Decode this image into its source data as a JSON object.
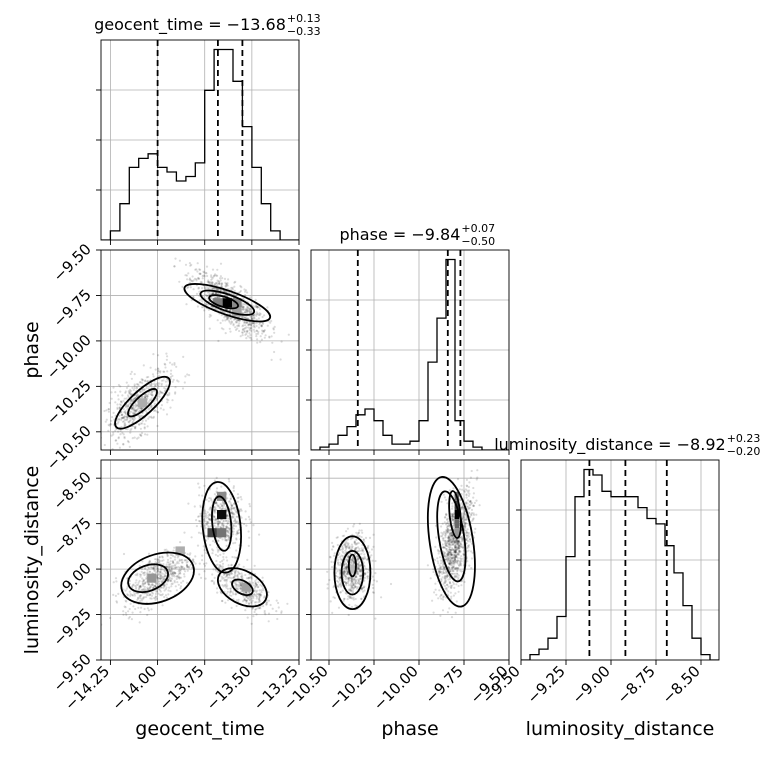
{
  "chart_data": {
    "type": "corner",
    "parameters": [
      "geocent_time",
      "phase",
      "luminosity_distance"
    ],
    "axis_labels": [
      "geocent_time",
      "phase",
      "luminosity_distance"
    ],
    "ranges": [
      [
        -14.3,
        -13.25
      ],
      [
        -10.6,
        -9.5
      ],
      [
        -9.5,
        -8.4
      ]
    ],
    "ticks": [
      [
        -14.25,
        -14.0,
        -13.75,
        -13.5,
        -13.25
      ],
      [
        -10.5,
        -10.25,
        -10.0,
        -9.75,
        -9.5
      ],
      [
        -9.5,
        -9.25,
        -9.0,
        -8.75,
        -8.5
      ]
    ],
    "tick_labels": [
      [
        "−14.25",
        "−14.00",
        "−13.75",
        "−13.50",
        "−13.25"
      ],
      [
        "−10.50",
        "−10.25",
        "−10.00",
        "−9.75",
        "−9.50"
      ],
      [
        "−9.50",
        "−9.25",
        "−9.00",
        "−8.75",
        "−8.50"
      ]
    ],
    "titles": [
      {
        "text": "geocent_time = −13.68",
        "plus": "+0.13",
        "minus": "−0.33"
      },
      {
        "text": "phase = −9.84",
        "plus": "+0.07",
        "minus": "−0.50"
      },
      {
        "text": "luminosity_distance = −8.92",
        "plus": "+0.23",
        "minus": "−0.20"
      }
    ],
    "quantiles": [
      [
        -14.0,
        -13.68,
        -13.55
      ],
      [
        -10.34,
        -9.84,
        -9.77
      ],
      [
        -9.12,
        -8.92,
        -8.69
      ]
    ],
    "histograms": [
      {
        "x0": -14.3,
        "width": 0.05,
        "counts": [
          0,
          2,
          8,
          16,
          18,
          19,
          16,
          15,
          13,
          14,
          17,
          33,
          42,
          42,
          35,
          25,
          16,
          8,
          2,
          0,
          0
        ]
      },
      {
        "x0": -10.6,
        "width": 0.05,
        "counts": [
          0,
          1,
          2,
          5,
          8,
          12,
          14,
          10,
          5,
          2,
          2,
          3,
          10,
          30,
          45,
          65,
          10,
          3,
          1,
          0,
          0,
          0
        ]
      },
      {
        "x0": -9.5,
        "width": 0.05,
        "counts": [
          0,
          1,
          2,
          4,
          8,
          19,
          30,
          35,
          34,
          31,
          30,
          30,
          30,
          28,
          26,
          25,
          21,
          16,
          10,
          4,
          1,
          0
        ]
      }
    ],
    "sample_clusters": [
      {
        "pair": [
          1,
          0
        ],
        "center": [
          -13.62,
          -9.8
        ],
        "sd": [
          0.1,
          0.09
        ],
        "rho": -0.75,
        "n": 900
      },
      {
        "pair": [
          1,
          0
        ],
        "center": [
          -14.1,
          -10.35
        ],
        "sd": [
          0.09,
          0.1
        ],
        "rho": 0.65,
        "n": 620
      },
      {
        "pair": [
          2,
          0
        ],
        "center": [
          -14.0,
          -9.05
        ],
        "sd": [
          0.09,
          0.08
        ],
        "rho": 0.6,
        "n": 600
      },
      {
        "pair": [
          2,
          0
        ],
        "center": [
          -13.66,
          -8.72
        ],
        "sd": [
          0.06,
          0.09
        ],
        "rho": 0.0,
        "n": 500
      },
      {
        "pair": [
          2,
          0
        ],
        "center": [
          -13.55,
          -9.1
        ],
        "sd": [
          0.08,
          0.07
        ],
        "rho": -0.6,
        "n": 420
      },
      {
        "pair": [
          2,
          1
        ],
        "center": [
          -10.37,
          -9.0
        ],
        "sd": [
          0.05,
          0.09
        ],
        "rho": 0.0,
        "n": 650
      },
      {
        "pair": [
          2,
          1
        ],
        "center": [
          -9.8,
          -8.85
        ],
        "sd": [
          0.05,
          0.14
        ],
        "rho": 0.55,
        "n": 1000
      }
    ],
    "contours": [
      {
        "pair": [
          1,
          0
        ],
        "center": [
          -13.63,
          -9.79
        ],
        "rx": 0.24,
        "ry": 0.065,
        "angle": -0.34
      },
      {
        "pair": [
          1,
          0
        ],
        "center": [
          -13.63,
          -9.79
        ],
        "rx": 0.15,
        "ry": 0.045,
        "angle": -0.34
      },
      {
        "pair": [
          1,
          0
        ],
        "center": [
          -13.65,
          -9.785
        ],
        "rx": 0.08,
        "ry": 0.028,
        "angle": -0.3
      },
      {
        "pair": [
          1,
          0
        ],
        "center": [
          -14.08,
          -10.34
        ],
        "rx": 0.19,
        "ry": 0.065,
        "angle": 0.75
      },
      {
        "pair": [
          1,
          0
        ],
        "center": [
          -14.08,
          -10.34
        ],
        "rx": 0.1,
        "ry": 0.035,
        "angle": 0.75
      },
      {
        "pair": [
          2,
          0
        ],
        "center": [
          -14.0,
          -9.05
        ],
        "rx": 0.2,
        "ry": 0.13,
        "angle": 0.35
      },
      {
        "pair": [
          2,
          0
        ],
        "center": [
          -14.05,
          -9.05
        ],
        "rx": 0.11,
        "ry": 0.07,
        "angle": 0.35
      },
      {
        "pair": [
          2,
          0
        ],
        "center": [
          -13.66,
          -8.77
        ],
        "rx": 0.1,
        "ry": 0.25,
        "angle": 0.1
      },
      {
        "pair": [
          2,
          0
        ],
        "center": [
          -13.66,
          -8.75
        ],
        "rx": 0.05,
        "ry": 0.15,
        "angle": 0.1
      },
      {
        "pair": [
          2,
          0
        ],
        "center": [
          -13.55,
          -9.1
        ],
        "rx": 0.14,
        "ry": 0.09,
        "angle": -0.5
      },
      {
        "pair": [
          2,
          0
        ],
        "center": [
          -13.55,
          -9.1
        ],
        "rx": 0.06,
        "ry": 0.035,
        "angle": -0.5
      },
      {
        "pair": [
          2,
          1
        ],
        "center": [
          -10.37,
          -9.02
        ],
        "rx": 0.1,
        "ry": 0.2,
        "angle": 0.0
      },
      {
        "pair": [
          2,
          1
        ],
        "center": [
          -10.37,
          -9.02
        ],
        "rx": 0.06,
        "ry": 0.12,
        "angle": 0.0
      },
      {
        "pair": [
          2,
          1
        ],
        "center": [
          -10.37,
          -8.98
        ],
        "rx": 0.02,
        "ry": 0.06,
        "angle": 0.0
      },
      {
        "pair": [
          2,
          1
        ],
        "center": [
          -9.82,
          -8.85
        ],
        "rx": 0.12,
        "ry": 0.36,
        "angle": 0.15
      },
      {
        "pair": [
          2,
          1
        ],
        "center": [
          -9.82,
          -8.82
        ],
        "rx": 0.07,
        "ry": 0.25,
        "angle": 0.15
      },
      {
        "pair": [
          2,
          1
        ],
        "center": [
          -9.8,
          -8.7
        ],
        "rx": 0.03,
        "ry": 0.13,
        "angle": 0.1
      }
    ],
    "density_cells": [
      {
        "pair": [
          1,
          0
        ],
        "x": -13.63,
        "y": -9.79,
        "w": 0.05,
        "h": 0.05,
        "level": 1.0
      },
      {
        "pair": [
          1,
          0
        ],
        "x": -13.68,
        "y": -9.79,
        "w": 0.05,
        "h": 0.05,
        "level": 0.45
      },
      {
        "pair": [
          1,
          0
        ],
        "x": -13.58,
        "y": -9.79,
        "w": 0.05,
        "h": 0.05,
        "level": 0.4
      },
      {
        "pair": [
          1,
          0
        ],
        "x": -13.58,
        "y": -9.84,
        "w": 0.05,
        "h": 0.05,
        "level": 0.3
      },
      {
        "pair": [
          1,
          0
        ],
        "x": -14.08,
        "y": -10.34,
        "w": 0.05,
        "h": 0.05,
        "level": 0.25
      },
      {
        "pair": [
          2,
          0
        ],
        "x": -13.66,
        "y": -8.7,
        "w": 0.05,
        "h": 0.05,
        "level": 0.95
      },
      {
        "pair": [
          2,
          0
        ],
        "x": -13.71,
        "y": -8.8,
        "w": 0.05,
        "h": 0.05,
        "level": 0.7
      },
      {
        "pair": [
          2,
          0
        ],
        "x": -13.66,
        "y": -8.8,
        "w": 0.05,
        "h": 0.05,
        "level": 0.5
      },
      {
        "pair": [
          2,
          0
        ],
        "x": -13.66,
        "y": -8.6,
        "w": 0.05,
        "h": 0.05,
        "level": 0.4
      },
      {
        "pair": [
          2,
          0
        ],
        "x": -14.03,
        "y": -9.05,
        "w": 0.05,
        "h": 0.05,
        "level": 0.35
      },
      {
        "pair": [
          2,
          0
        ],
        "x": -13.53,
        "y": -9.1,
        "w": 0.05,
        "h": 0.05,
        "level": 0.3
      },
      {
        "pair": [
          2,
          0
        ],
        "x": -13.88,
        "y": -8.9,
        "w": 0.05,
        "h": 0.05,
        "level": 0.25
      },
      {
        "pair": [
          2,
          1
        ],
        "x": -9.79,
        "y": -8.7,
        "w": 0.025,
        "h": 0.05,
        "level": 1.0
      },
      {
        "pair": [
          2,
          1
        ],
        "x": -9.79,
        "y": -8.65,
        "w": 0.025,
        "h": 0.05,
        "level": 0.75
      },
      {
        "pair": [
          2,
          1
        ],
        "x": -9.79,
        "y": -8.6,
        "w": 0.025,
        "h": 0.05,
        "level": 0.55
      },
      {
        "pair": [
          2,
          1
        ],
        "x": -9.79,
        "y": -8.75,
        "w": 0.025,
        "h": 0.05,
        "level": 0.55
      },
      {
        "pair": [
          2,
          1
        ],
        "x": -9.79,
        "y": -8.8,
        "w": 0.025,
        "h": 0.05,
        "level": 0.35
      },
      {
        "pair": [
          2,
          1
        ],
        "x": -10.37,
        "y": -9.0,
        "w": 0.025,
        "h": 0.05,
        "level": 0.2
      }
    ],
    "grid": true
  }
}
